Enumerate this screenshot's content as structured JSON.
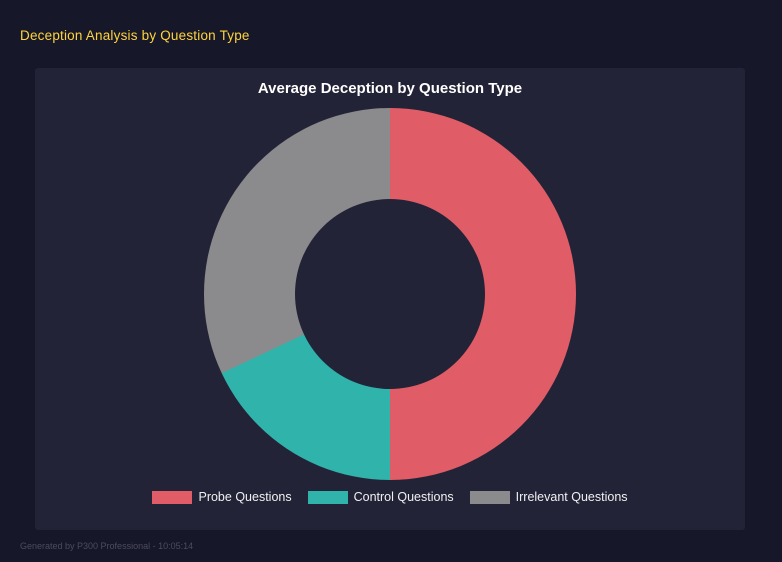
{
  "page": {
    "title": "Deception Analysis by Question Type",
    "footer": "Generated by P300 Professional - 10:05:14"
  },
  "chart_data": {
    "type": "pie",
    "subtype": "donut",
    "title": "Average Deception by Question Type",
    "categories": [
      "Probe Questions",
      "Control Questions",
      "Irrelevant Questions"
    ],
    "values": [
      50,
      18,
      32
    ],
    "values_note": "approximate percent of circle, estimated from arc angles",
    "colors": [
      "#e05c66",
      "#2fb3aa",
      "#8b8b8d"
    ],
    "legend_position": "bottom",
    "background": "#232338",
    "title_color": "#ffffff",
    "start_angle_deg": 0,
    "inner_radius_ratio": 0.51
  }
}
